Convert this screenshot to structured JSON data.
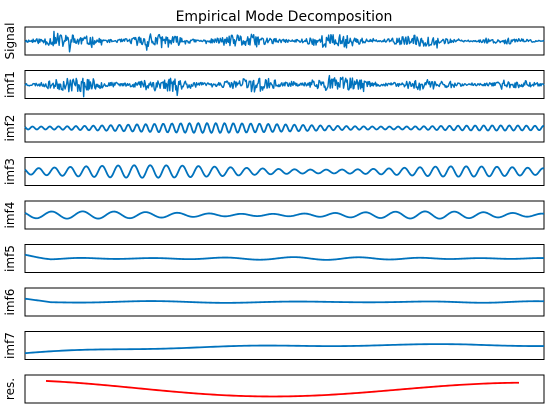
{
  "chart_data": {
    "type": "line",
    "title": "Empirical Mode Decomposition",
    "colors": {
      "imf": "#0072BD",
      "residual": "#FF0000",
      "axes": "#000000"
    },
    "x_range": [
      0,
      1000
    ],
    "axis_ticks": "none",
    "grid": false,
    "panels": [
      {
        "label": "Signal",
        "ylim": [
          -1.1,
          1.1
        ],
        "style": "noise",
        "amp": 0.55,
        "cycles": 130,
        "seed": 11,
        "decay": 0.75
      },
      {
        "label": "imf1",
        "ylim": [
          -1.1,
          1.1
        ],
        "style": "noise",
        "amp": 0.6,
        "cycles": 170,
        "seed": 23,
        "decay": 0.7
      },
      {
        "label": "imf2",
        "ylim": [
          -1,
          1
        ],
        "style": "wave",
        "amp": 0.35,
        "cycles": 60,
        "seed": 5,
        "decay": 0.55
      },
      {
        "label": "imf3",
        "ylim": [
          -1,
          1
        ],
        "style": "wave",
        "amp": 0.45,
        "cycles": 33,
        "seed": 7,
        "decay": 0.45
      },
      {
        "label": "imf4",
        "ylim": [
          -1,
          1
        ],
        "style": "wave",
        "amp": 0.26,
        "cycles": 17,
        "seed": 9,
        "decay": 0.35
      },
      {
        "label": "imf5",
        "ylim": [
          -1,
          1
        ],
        "style": "wave",
        "amp": 0.1,
        "cycles": 8,
        "seed": 13,
        "decay": 0.25
      },
      {
        "label": "imf6",
        "ylim": [
          -1,
          1
        ],
        "style": "wave",
        "amp": 0.07,
        "cycles": 4,
        "seed": 17,
        "decay": 0.2
      },
      {
        "label": "imf7",
        "ylim": [
          -1,
          1
        ],
        "style": "trend",
        "seed": 19
      },
      {
        "label": "res.",
        "ylim": [
          -1,
          1
        ],
        "style": "residual",
        "seed": 29
      }
    ]
  }
}
